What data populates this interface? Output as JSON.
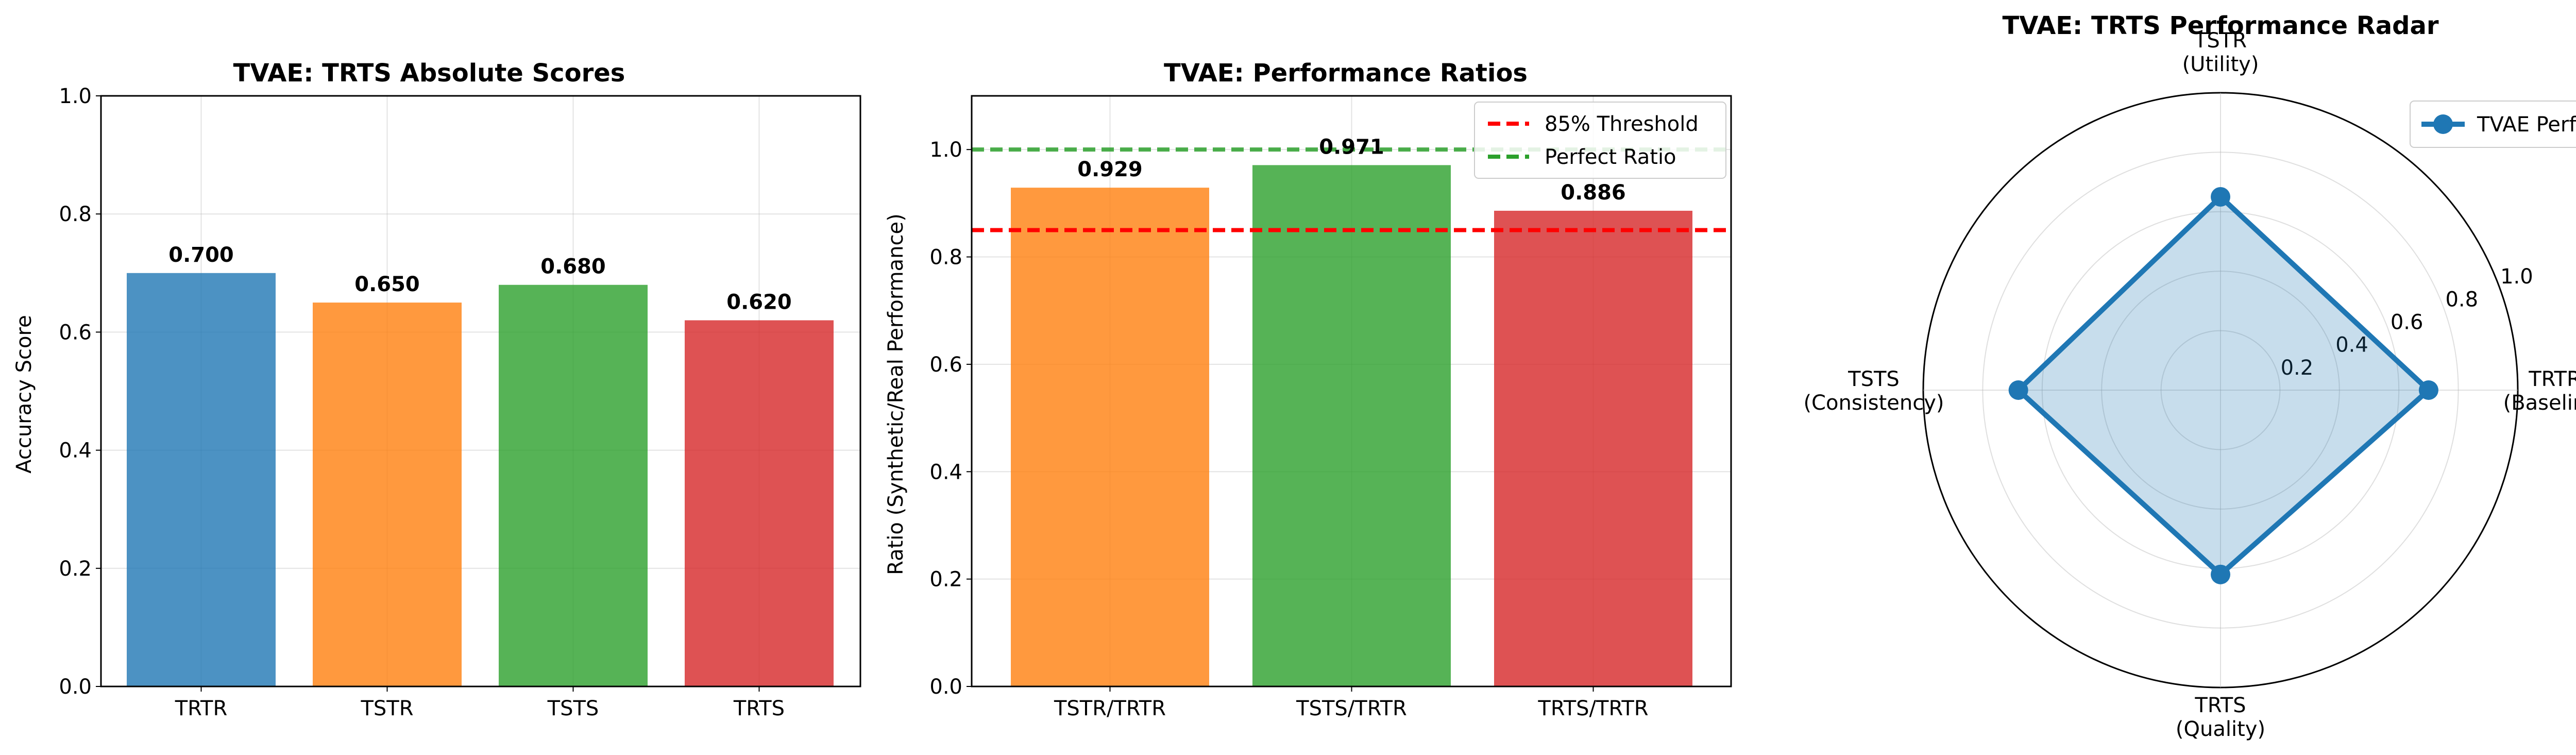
{
  "chart_data": [
    {
      "type": "bar",
      "title": "TVAE: TRTS Absolute Scores",
      "xlabel": "",
      "ylabel": "Accuracy Score",
      "categories": [
        "TRTR",
        "TSTR",
        "TSTS",
        "TRTS"
      ],
      "values": [
        0.7,
        0.65,
        0.68,
        0.62
      ],
      "value_labels": [
        "0.700",
        "0.650",
        "0.680",
        "0.620"
      ],
      "colors": [
        "#1f77b4",
        "#ff7f0e",
        "#2ca02c",
        "#d62728"
      ],
      "ylim": [
        0,
        1.0
      ],
      "yticks": [
        0.0,
        0.2,
        0.4,
        0.6,
        0.8,
        1.0
      ],
      "ytick_labels": [
        "0.0",
        "0.2",
        "0.4",
        "0.6",
        "0.8",
        "1.0"
      ],
      "grid": true
    },
    {
      "type": "bar",
      "title": "TVAE: Performance Ratios",
      "xlabel": "",
      "ylabel": "Ratio (Synthetic/Real Performance)",
      "categories": [
        "TSTR/TRTR",
        "TSTS/TRTR",
        "TRTS/TRTR"
      ],
      "values": [
        0.929,
        0.971,
        0.886
      ],
      "value_labels": [
        "0.929",
        "0.971",
        "0.886"
      ],
      "colors": [
        "#ff7f0e",
        "#2ca02c",
        "#d62728"
      ],
      "ylim": [
        0,
        1.1
      ],
      "yticks": [
        0.0,
        0.2,
        0.4,
        0.6,
        0.8,
        1.0
      ],
      "ytick_labels": [
        "0.0",
        "0.2",
        "0.4",
        "0.6",
        "0.8",
        "1.0"
      ],
      "grid": true,
      "reference_lines": [
        {
          "name": "85% Threshold",
          "y": 0.85,
          "color": "#ff0000"
        },
        {
          "name": "Perfect Ratio",
          "y": 1.0,
          "color": "#2ca02c"
        }
      ],
      "legend_position": "top-right"
    },
    {
      "type": "radar",
      "title": "TVAE: TRTS Performance Radar",
      "axes": [
        {
          "label": "TRTR",
          "sublabel": "(Baseline)"
        },
        {
          "label": "TSTR",
          "sublabel": "(Utility)"
        },
        {
          "label": "TSTS",
          "sublabel": "(Consistency)"
        },
        {
          "label": "TRTS",
          "sublabel": "(Quality)"
        }
      ],
      "series": [
        {
          "name": "TVAE Performance",
          "values": [
            0.7,
            0.65,
            0.68,
            0.62
          ],
          "color": "#1f77b4"
        }
      ],
      "rlim": [
        0,
        1.0
      ],
      "rticks": [
        0.2,
        0.4,
        0.6,
        0.8,
        1.0
      ],
      "rtick_labels": [
        "0.2",
        "0.4",
        "0.6",
        "0.8",
        "1.0"
      ],
      "grid": true,
      "legend_position": "top-right"
    }
  ]
}
